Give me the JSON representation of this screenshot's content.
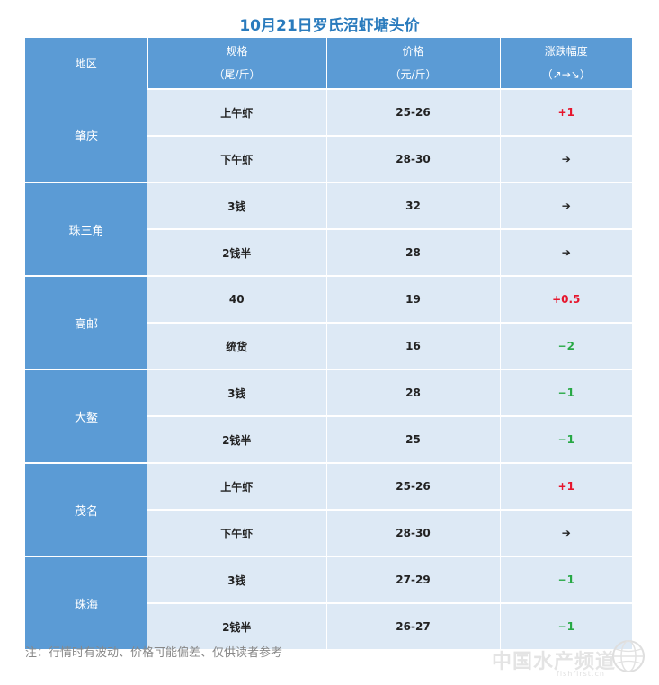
{
  "title": "10月21日罗氏沼虾塘头价",
  "table": {
    "headers": [
      {
        "line1": "地区",
        "line2": ""
      },
      {
        "line1": "规格",
        "line2": "（尾/斤）"
      },
      {
        "line1": "价格",
        "line2": "（元/斤）"
      },
      {
        "line1": "涨跌幅度",
        "line2": "（↗→↘）"
      }
    ],
    "groups": [
      {
        "region": "肇庆",
        "rows": [
          {
            "spec": "上午虾",
            "price": "25-26",
            "change": "+1",
            "trend": "up"
          },
          {
            "spec": "下午虾",
            "price": "28-30",
            "change": "➔",
            "trend": "flat"
          }
        ]
      },
      {
        "region": "珠三角",
        "rows": [
          {
            "spec": "3钱",
            "price": "32",
            "change": "➔",
            "trend": "flat"
          },
          {
            "spec": "2钱半",
            "price": "28",
            "change": "➔",
            "trend": "flat"
          }
        ]
      },
      {
        "region": "高邮",
        "rows": [
          {
            "spec": "40",
            "price": "19",
            "change": "+0.5",
            "trend": "up"
          },
          {
            "spec": "统货",
            "price": "16",
            "change": "−2",
            "trend": "down"
          }
        ]
      },
      {
        "region": "大鳌",
        "rows": [
          {
            "spec": "3钱",
            "price": "28",
            "change": "−1",
            "trend": "down"
          },
          {
            "spec": "2钱半",
            "price": "25",
            "change": "−1",
            "trend": "down"
          }
        ]
      },
      {
        "region": "茂名",
        "rows": [
          {
            "spec": "上午虾",
            "price": "25-26",
            "change": "+1",
            "trend": "up"
          },
          {
            "spec": "下午虾",
            "price": "28-30",
            "change": "➔",
            "trend": "flat"
          }
        ]
      },
      {
        "region": "珠海",
        "rows": [
          {
            "spec": "3钱",
            "price": "27-29",
            "change": "−1",
            "trend": "down"
          },
          {
            "spec": "2钱半",
            "price": "26-27",
            "change": "−1",
            "trend": "down"
          }
        ]
      }
    ]
  },
  "note": "注：行情时有波动、价格可能偏差、仅供读者参考",
  "watermark": {
    "text": "中国水产频道",
    "sub": "fishfirst.cn"
  },
  "colors": {
    "header": "#5b9bd5",
    "cell": "#dde9f5",
    "up": "#e6162d",
    "down": "#27a844",
    "title": "#2a7bbd"
  }
}
